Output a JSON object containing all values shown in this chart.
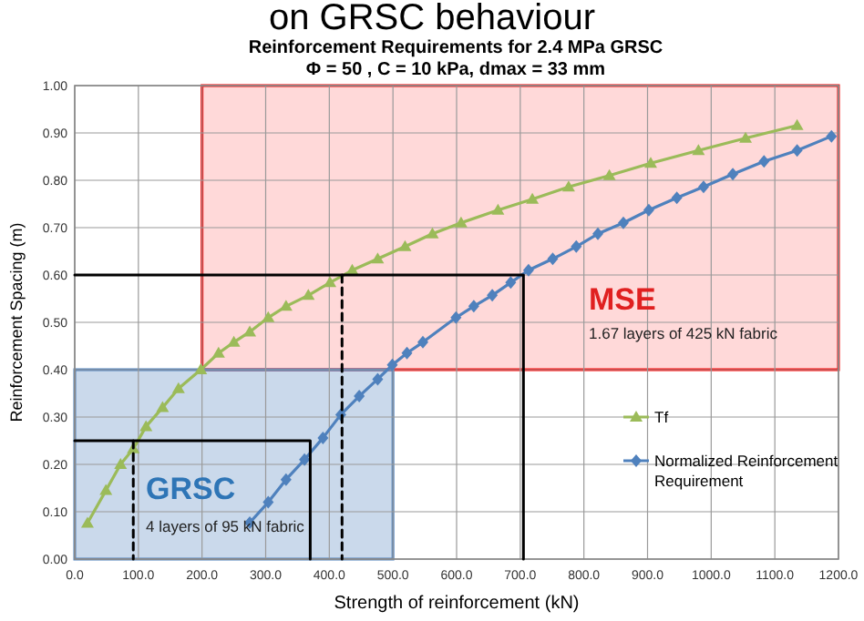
{
  "chart_data": {
    "type": "line",
    "title": "on GRSC behaviour",
    "subtitle": "Reinforcement Requirements for 2.4 MPa  GRSC\nΦ = 50  ,  C = 10 kPa, dmax = 33 mm",
    "xlabel": "Strength of reinforcement (kN)",
    "ylabel": "Reinforcement Spacing (m)",
    "xlim": [
      0,
      1200
    ],
    "ylim": [
      0,
      1
    ],
    "xticks": [
      {
        "value": 0,
        "label": "0.0"
      },
      {
        "value": 100,
        "label": "100.0"
      },
      {
        "value": 200,
        "label": "200.0"
      },
      {
        "value": 300,
        "label": "300.0"
      },
      {
        "value": 400,
        "label": "400.0"
      },
      {
        "value": 500,
        "label": "500.0"
      },
      {
        "value": 600,
        "label": "600.0"
      },
      {
        "value": 700,
        "label": "700.0"
      },
      {
        "value": 800,
        "label": "800.0"
      },
      {
        "value": 900,
        "label": "900.0"
      },
      {
        "value": 1000,
        "label": "1000.0"
      },
      {
        "value": 1100,
        "label": "1100.0"
      },
      {
        "value": 1200,
        "label": "1200.0"
      }
    ],
    "yticks": [
      {
        "value": 0,
        "label": "0.00"
      },
      {
        "value": 0.1,
        "label": "0.10"
      },
      {
        "value": 0.2,
        "label": "0.20"
      },
      {
        "value": 0.3,
        "label": "0.30"
      },
      {
        "value": 0.4,
        "label": "0.40"
      },
      {
        "value": 0.5,
        "label": "0.50"
      },
      {
        "value": 0.6,
        "label": "0.60"
      },
      {
        "value": 0.7,
        "label": "0.70"
      },
      {
        "value": 0.8,
        "label": "0.80"
      },
      {
        "value": 0.9,
        "label": "0.90"
      },
      {
        "value": 1,
        "label": "1.00"
      }
    ],
    "grid": true,
    "legend": "bottom right",
    "annotations": [
      "MSE",
      "1.67 layers of 425 kN fabric",
      "GRSC",
      "4 layers of 95 kN fabric"
    ],
    "series": [
      {
        "type": "area",
        "color": "#ff0000",
        "x": [
          200,
          1200,
          1200,
          200
        ],
        "values": [
          0.4,
          0.4,
          1,
          1
        ]
      },
      {
        "type": "area",
        "color": "#4f81bd",
        "x": [
          0,
          500,
          500,
          0
        ],
        "values": [
          0,
          0,
          0.4,
          0.4
        ]
      },
      {
        "name": "Tf",
        "color": "#9bbb59",
        "marker": "triangle",
        "x": [
          20,
          49,
          72,
          92,
          112,
          138,
          163,
          198,
          226,
          250,
          275,
          304,
          332,
          367,
          401,
          436,
          476,
          519,
          562,
          607,
          665,
          719,
          776,
          840,
          905,
          980,
          1054,
          1135
        ],
        "values": [
          0.076,
          0.145,
          0.2,
          0.233,
          0.28,
          0.32,
          0.36,
          0.4,
          0.435,
          0.458,
          0.48,
          0.51,
          0.534,
          0.557,
          0.584,
          0.61,
          0.634,
          0.66,
          0.687,
          0.71,
          0.737,
          0.76,
          0.786,
          0.81,
          0.836,
          0.863,
          0.889,
          0.916
        ]
      },
      {
        "name": "Normalized Reinforcement Requirement",
        "color": "#4f81bd",
        "marker": "diamond",
        "x": [
          275,
          304,
          332,
          361,
          390,
          418,
          447,
          476,
          499,
          522,
          547,
          599,
          627,
          656,
          685,
          713,
          751,
          788,
          822,
          862,
          902,
          946,
          988,
          1034,
          1083,
          1135,
          1189
        ],
        "values": [
          0.077,
          0.12,
          0.168,
          0.21,
          0.256,
          0.305,
          0.344,
          0.38,
          0.41,
          0.435,
          0.458,
          0.51,
          0.534,
          0.557,
          0.584,
          0.61,
          0.634,
          0.66,
          0.687,
          0.71,
          0.737,
          0.763,
          0.786,
          0.813,
          0.84,
          0.863,
          0.893
        ]
      },
      {
        "color": "#000000",
        "marker": "none",
        "line_style": "solid",
        "x": [
          0,
          705,
          705
        ],
        "values": [
          0.6,
          0.6,
          0
        ]
      },
      {
        "color": "#000000",
        "marker": "none",
        "line_style": "solid",
        "x": [
          0,
          370,
          370
        ],
        "values": [
          0.25,
          0.25,
          0
        ]
      },
      {
        "color": "#000000",
        "marker": "none",
        "line_style": "dashed",
        "x": [
          92,
          92
        ],
        "values": [
          0.25,
          0
        ]
      },
      {
        "color": "#000000",
        "marker": "none",
        "line_style": "dashed",
        "x": [
          420,
          420
        ],
        "values": [
          0.6,
          0
        ]
      }
    ]
  }
}
